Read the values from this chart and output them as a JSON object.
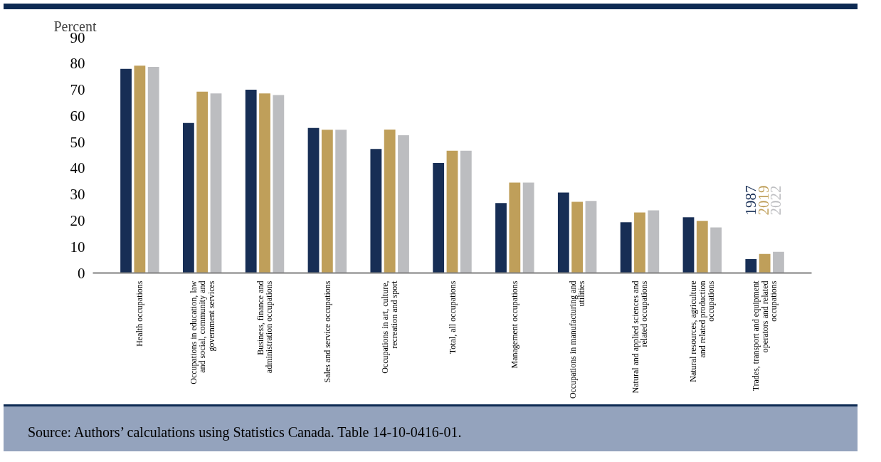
{
  "chart_data": {
    "type": "bar",
    "ylabel": "Percent",
    "categories": [
      "Health occupations",
      "Occupations in education, law and social, community and government services",
      "Business, finance and administration occupations",
      "Sales and service occupations",
      "Occupations in art, culture, recreation and sport",
      "Total, all occupations",
      "Management occupations",
      "Occupations in manufacturing and utilities",
      "Natural and applied sciences and related occupations",
      "Natural resources, agriculture and related production occupations",
      "Trades, transport and equipment operators and related occupations"
    ],
    "series": [
      {
        "name": "1987",
        "color": "#172e55",
        "values": [
          78,
          57.3,
          70,
          55.4,
          47.4,
          42,
          26.7,
          30.7,
          19.4,
          21.3,
          5.3
        ]
      },
      {
        "name": "2019",
        "color": "#bf9f5a",
        "values": [
          79.2,
          69.3,
          68.6,
          54.7,
          54.8,
          46.7,
          34.5,
          27.2,
          23.1,
          19.9,
          7.3
        ]
      },
      {
        "name": "2022",
        "color": "#bcbdc0",
        "values": [
          78.7,
          68.6,
          68,
          54.7,
          52.6,
          46.7,
          34.5,
          27.5,
          23.9,
          17.4,
          8.1
        ]
      }
    ],
    "ylim": [
      0,
      90
    ],
    "yticks": [
      0,
      10,
      20,
      30,
      40,
      50,
      60,
      70,
      80,
      90
    ],
    "grid": false,
    "legend": "right",
    "annotations": [
      "Source: Authors’ calculations using Statistics Canada. Table 14-10-0416-01."
    ]
  }
}
